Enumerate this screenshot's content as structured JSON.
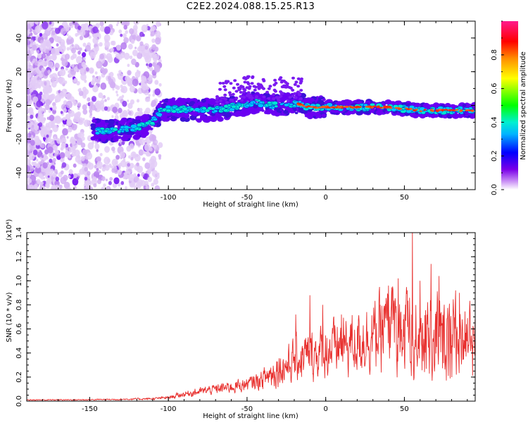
{
  "title": "C2E2.2024.088.15.25.R13",
  "chart_data": [
    {
      "type": "heatmap",
      "xlabel": "Height of straight line (km)",
      "ylabel": "Frequency (Hz)",
      "xlim": [
        -190,
        95
      ],
      "ylim": [
        -50,
        50
      ],
      "xticks": [
        -150,
        -100,
        -50,
        0,
        50
      ],
      "yticks": [
        -40,
        -20,
        0,
        20,
        40
      ],
      "colorbar": {
        "label": "Normalized spectral amplitude",
        "range": [
          0,
          1
        ],
        "ticks": [
          "0.0",
          "0.2",
          "0.4",
          "0.6",
          "0.8"
        ]
      },
      "ridge": {
        "x": [
          -145,
          -135,
          -125,
          -115,
          -110,
          -105,
          -95,
          -85,
          -75,
          -65,
          -55,
          -45,
          -35,
          -25,
          -18,
          -10,
          0,
          10,
          20,
          30,
          40,
          50,
          60,
          70,
          80,
          90,
          95
        ],
        "y": [
          -15,
          -15,
          -14,
          -12,
          -10,
          -3,
          -2,
          -3,
          -3,
          -2,
          0,
          2,
          0,
          1,
          1,
          -1,
          -1,
          -1,
          -1,
          -1,
          -1,
          -2,
          -3,
          -3,
          -3,
          -3,
          -3
        ]
      }
    },
    {
      "type": "line",
      "xlabel": "Height of straight line (km)",
      "ylabel": "SNR (10 * v/v)",
      "y_multiplier": "(x10⁴)",
      "xlim": [
        -190,
        95
      ],
      "ylim": [
        0,
        1.4
      ],
      "xticks": [
        -150,
        -100,
        -50,
        0,
        50
      ],
      "yticks": [
        "0.0",
        "0.2",
        "0.4",
        "0.6",
        "0.8",
        "1.0",
        "1.2",
        "1.4"
      ],
      "series": [
        {
          "color": "#e8302e",
          "envelope_x": [
            -190,
            -150,
            -130,
            -110,
            -100,
            -90,
            -80,
            -70,
            -60,
            -50,
            -40,
            -30,
            -25,
            -20,
            -10,
            0,
            10,
            20,
            30,
            40,
            50,
            60,
            70,
            80,
            90,
            95
          ],
          "envelope_mean": [
            0.01,
            0.012,
            0.015,
            0.02,
            0.03,
            0.06,
            0.08,
            0.1,
            0.12,
            0.14,
            0.18,
            0.28,
            0.3,
            0.34,
            0.38,
            0.42,
            0.46,
            0.5,
            0.55,
            0.6,
            0.6,
            0.55,
            0.58,
            0.55,
            0.55,
            0.5
          ],
          "peaks": [
            [
              -19,
              0.72
            ],
            [
              -10,
              0.88
            ],
            [
              -2,
              0.8
            ],
            [
              10,
              0.72
            ],
            [
              40,
              0.96
            ],
            [
              46,
              1.02
            ],
            [
              55,
              1.43
            ],
            [
              60,
              1.0
            ],
            [
              67,
              1.14
            ],
            [
              72,
              1.04
            ],
            [
              85,
              0.9
            ]
          ]
        }
      ]
    }
  ]
}
